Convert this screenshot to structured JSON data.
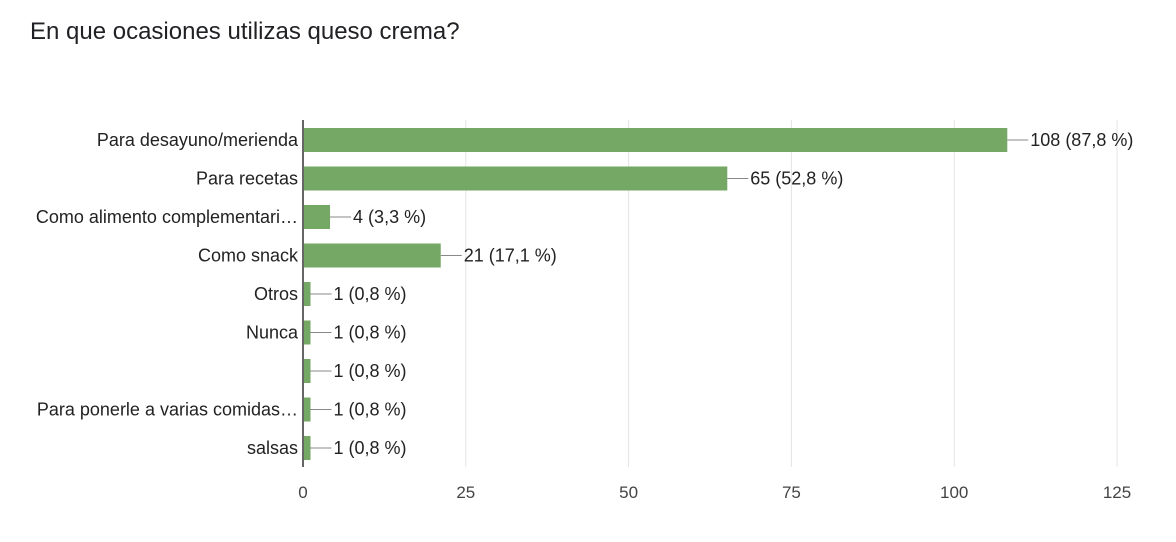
{
  "chart_data": {
    "type": "bar",
    "orientation": "horizontal",
    "title": "En que ocasiones utilizas queso crema?",
    "categories": [
      "Para desayuno/merienda",
      "Para recetas",
      "Como alimento complementari…",
      "Como snack",
      "Otros",
      "Nunca",
      "",
      "Para ponerle a varias comidas…",
      "salsas"
    ],
    "values": [
      108,
      65,
      4,
      21,
      1,
      1,
      1,
      1,
      1
    ],
    "value_labels": [
      "108 (87,8 %)",
      "65 (52,8 %)",
      "4 (3,3 %)",
      "21 (17,1 %)",
      "1 (0,8 %)",
      "1 (0,8 %)",
      "1 (0,8 %)",
      "1 (0,8 %)",
      "1 (0,8 %)"
    ],
    "xlim": [
      0,
      125
    ],
    "xticks": [
      0,
      25,
      50,
      75,
      100,
      125
    ],
    "grid": true,
    "legend": "none",
    "colors": {
      "bar": "#76a865",
      "grid": "#e4e4e4",
      "axis": "#333333",
      "leader": "#888888"
    }
  }
}
